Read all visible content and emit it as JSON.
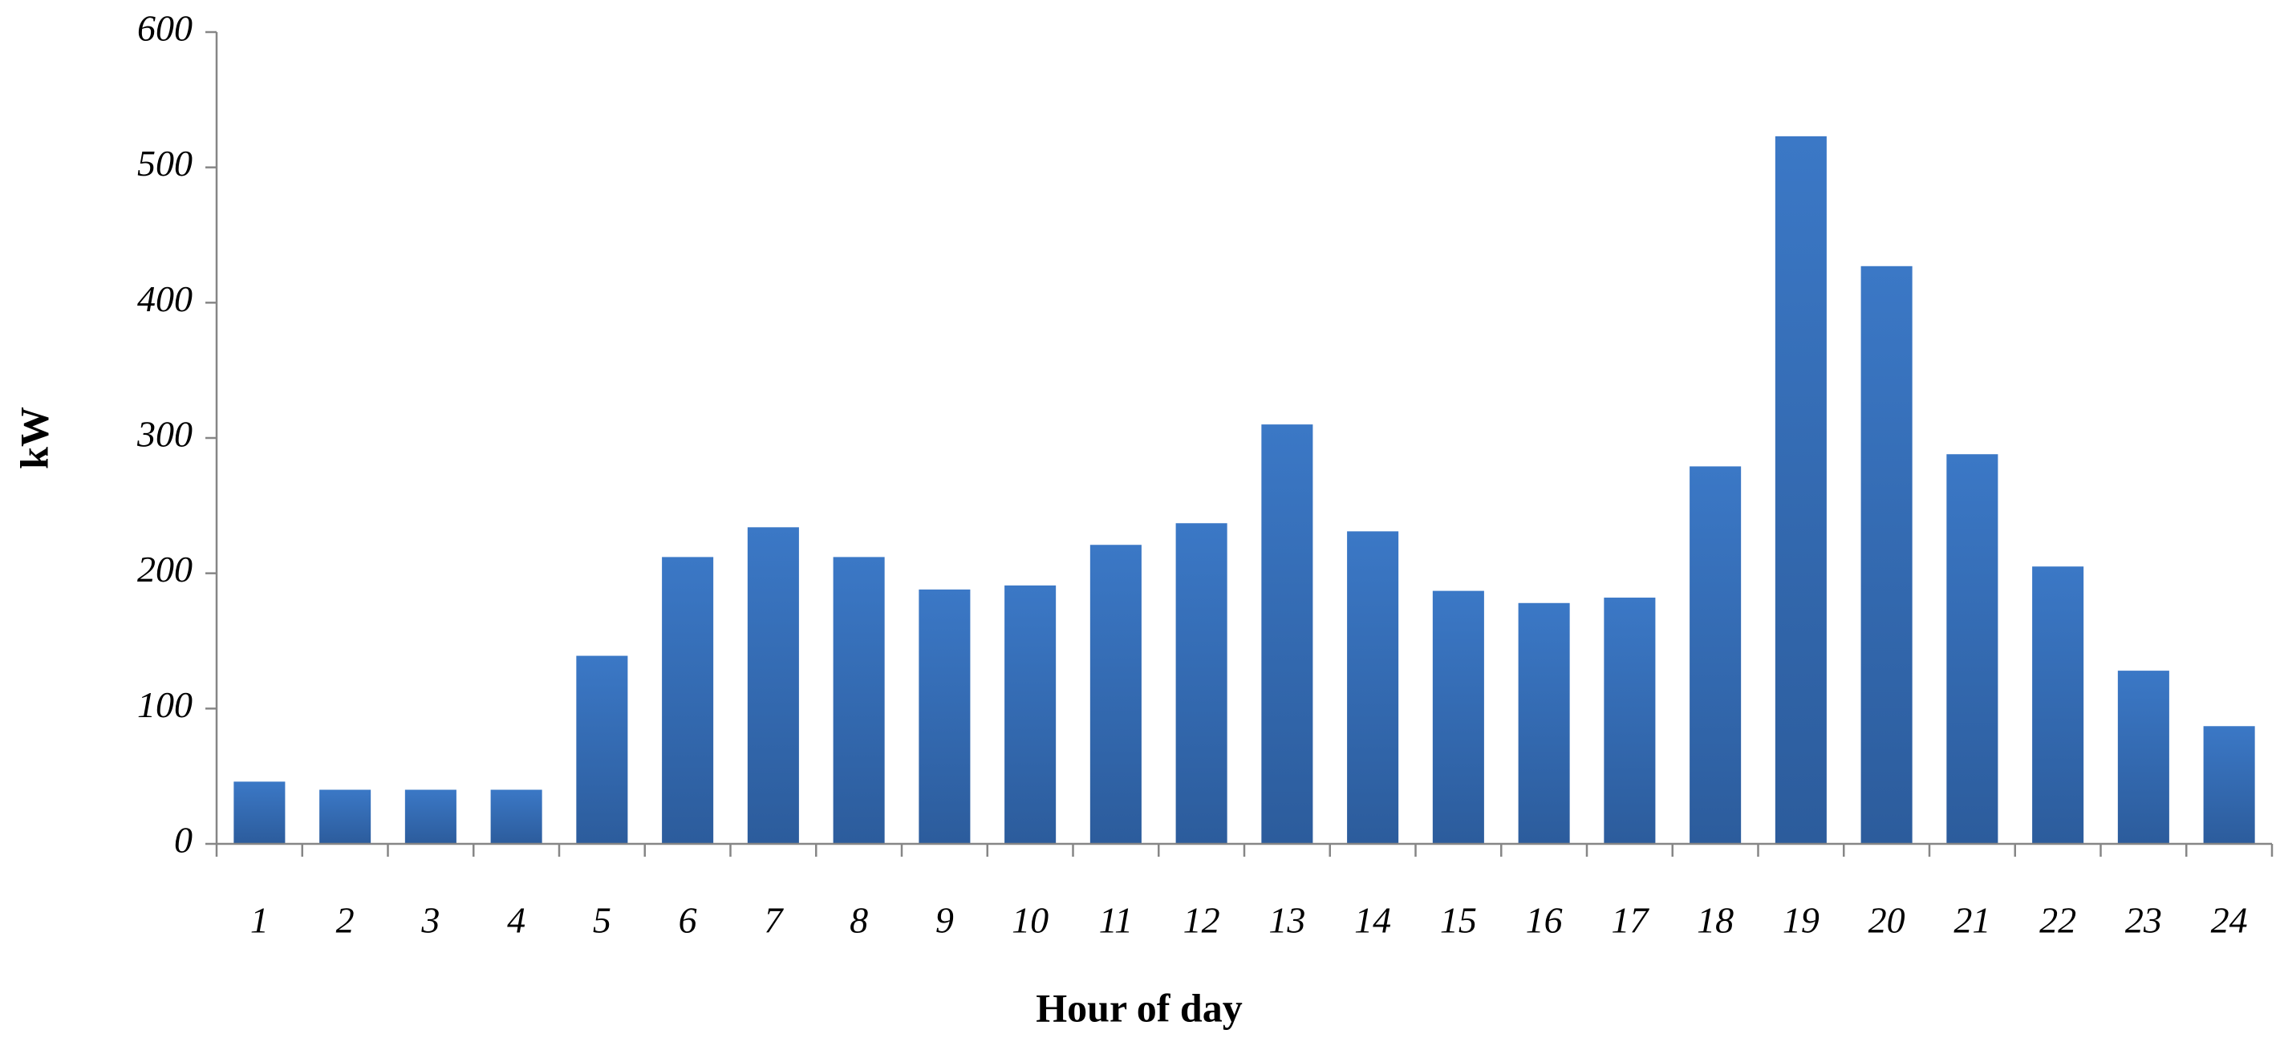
{
  "chart_data": {
    "type": "bar",
    "x_label": "Hour of day",
    "y_label": "kW",
    "categories": [
      "1",
      "2",
      "3",
      "4",
      "5",
      "6",
      "7",
      "8",
      "9",
      "10",
      "11",
      "12",
      "13",
      "14",
      "15",
      "16",
      "17",
      "18",
      "19",
      "20",
      "21",
      "22",
      "23",
      "24"
    ],
    "values": [
      46,
      40,
      40,
      40,
      139,
      212,
      234,
      212,
      188,
      191,
      221,
      237,
      310,
      231,
      187,
      178,
      182,
      279,
      523,
      427,
      288,
      205,
      128,
      87
    ],
    "color": "#3b78c6",
    "ylim": [
      0,
      600
    ],
    "yticks": [
      0,
      100,
      200,
      300,
      400,
      500,
      600
    ],
    "grid": false
  }
}
